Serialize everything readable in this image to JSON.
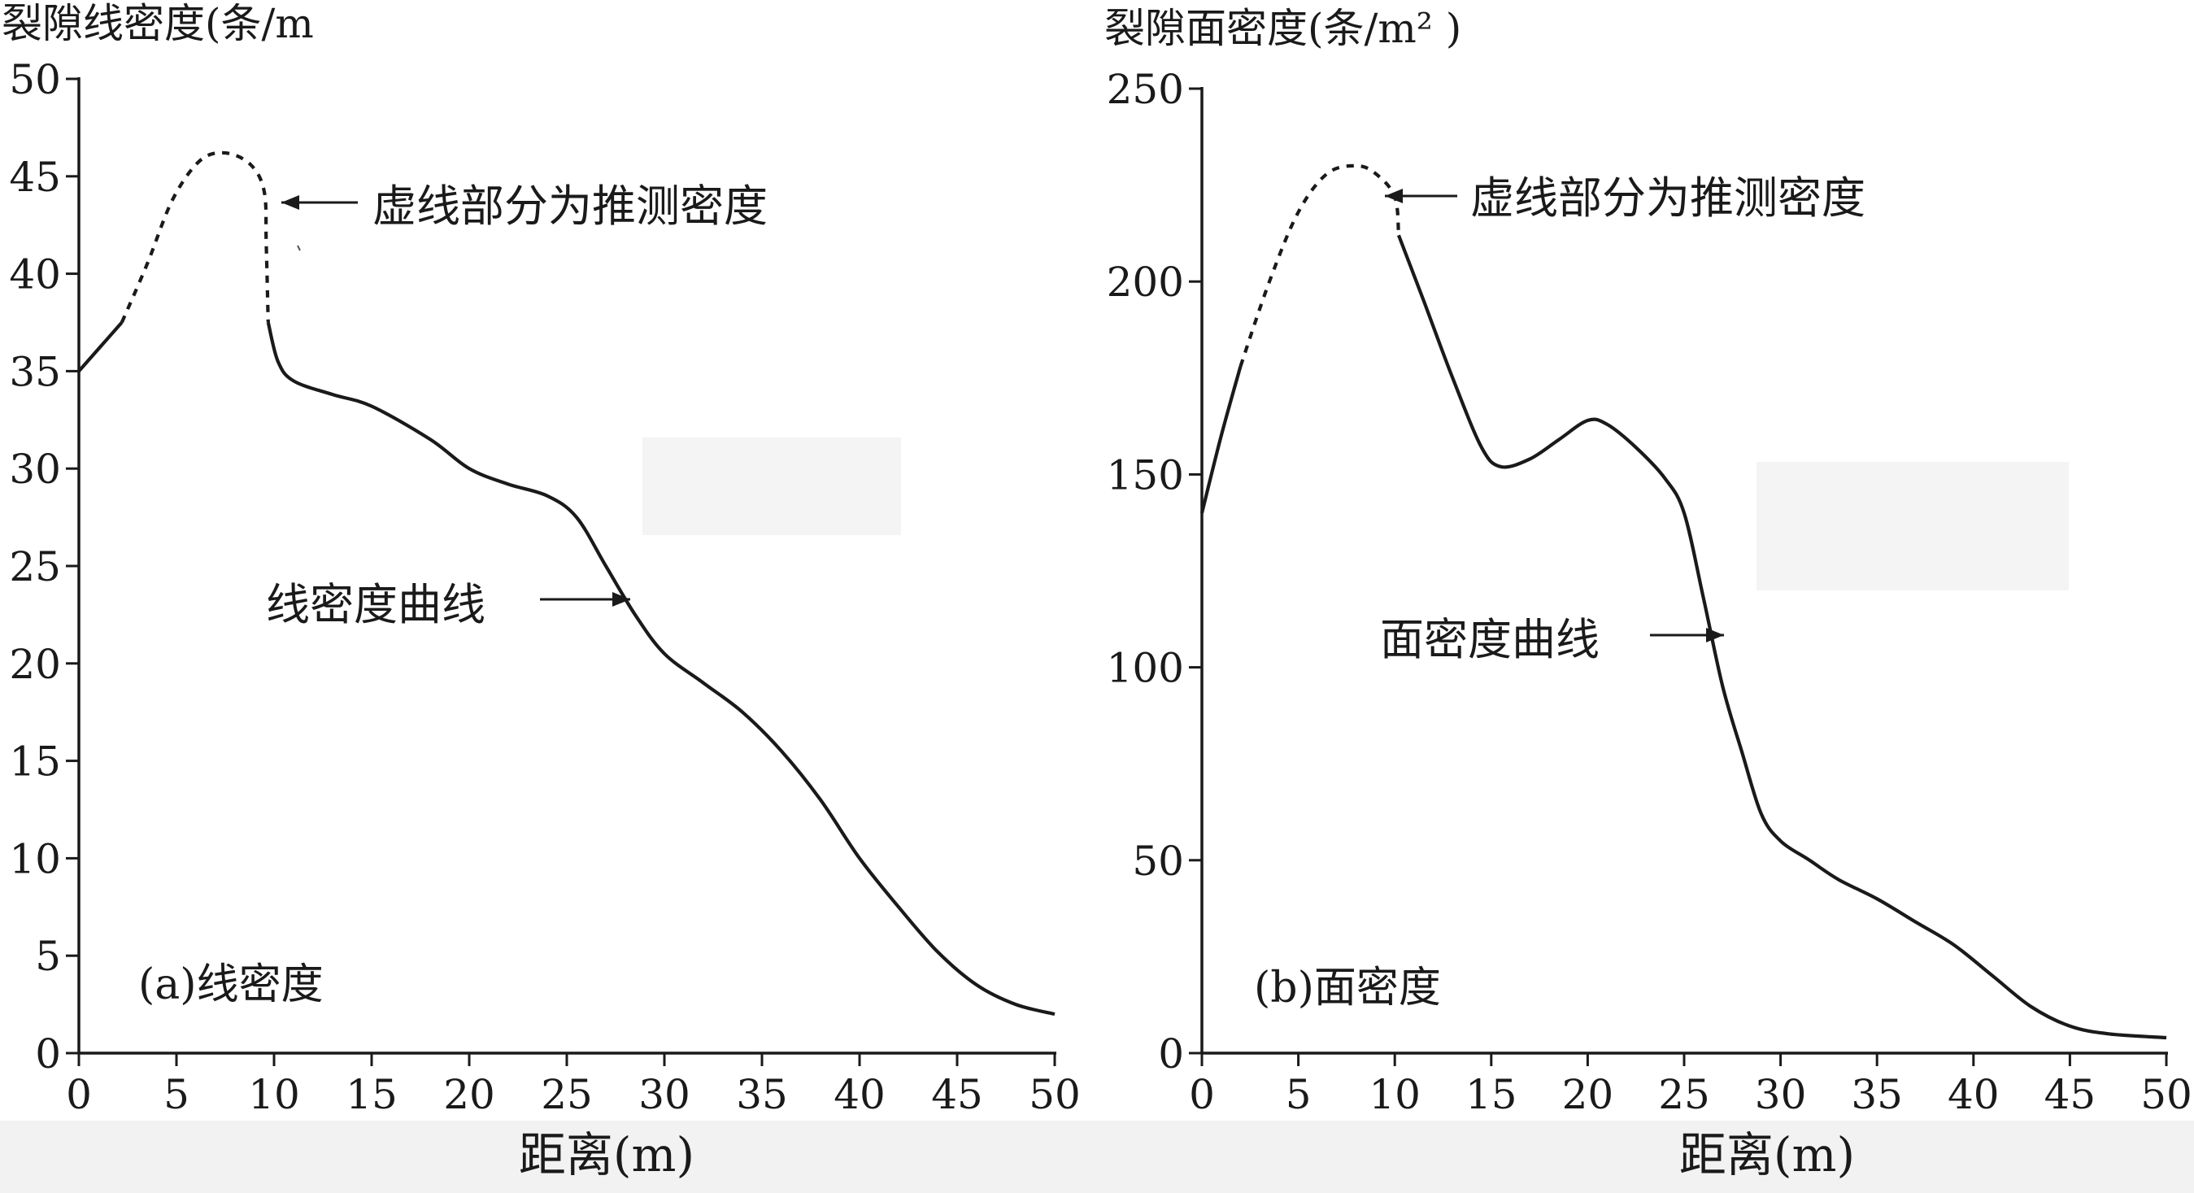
{
  "chart_data": [
    {
      "type": "line",
      "panel_label": "(a)线密度",
      "ylabel": "裂隙线密度(条/m",
      "xlabel": "距离(m)",
      "xlim": [
        0,
        50
      ],
      "ylim": [
        0,
        50
      ],
      "xticks": [
        "0",
        "5",
        "10",
        "15",
        "20",
        "25",
        "30",
        "35",
        "40",
        "45",
        "50"
      ],
      "yticks": [
        "0",
        "5",
        "10",
        "15",
        "20",
        "25",
        "30",
        "35",
        "40",
        "45",
        "50"
      ],
      "grid": false,
      "series": [
        {
          "style": "solid",
          "points": [
            [
              0,
              35
            ],
            [
              2.2,
              37.5
            ]
          ]
        },
        {
          "style": "dashed",
          "points": [
            [
              2.2,
              37.5
            ],
            [
              3.5,
              40.5
            ],
            [
              4.8,
              43.8
            ],
            [
              6.2,
              45.8
            ],
            [
              7.5,
              46.2
            ],
            [
              8.8,
              45.6
            ],
            [
              9.5,
              44.2
            ],
            [
              9.6,
              41.5
            ],
            [
              9.7,
              37.5
            ]
          ]
        },
        {
          "style": "solid",
          "points": [
            [
              9.7,
              37.5
            ],
            [
              10.2,
              35.5
            ],
            [
              11,
              34.5
            ],
            [
              13,
              33.8
            ],
            [
              15,
              33.2
            ],
            [
              18,
              31.5
            ],
            [
              20,
              30
            ],
            [
              22,
              29.2
            ],
            [
              24,
              28.6
            ],
            [
              25.5,
              27.5
            ],
            [
              27,
              25
            ],
            [
              28.5,
              22.5
            ],
            [
              30,
              20.5
            ],
            [
              32,
              19
            ],
            [
              34,
              17.5
            ],
            [
              36,
              15.5
            ],
            [
              38,
              13
            ],
            [
              40,
              10
            ],
            [
              42,
              7.5
            ],
            [
              44,
              5.2
            ],
            [
              46,
              3.5
            ],
            [
              48,
              2.5
            ],
            [
              50,
              2
            ]
          ]
        }
      ],
      "annotations": [
        {
          "text": "虚线部分为推测密度",
          "x": 9.8,
          "y": 43.5
        },
        {
          "text": "线密度曲线",
          "x": 28.3,
          "y": 23.2
        }
      ]
    },
    {
      "type": "line",
      "panel_label": "(b)面密度",
      "ylabel": "裂隙面密度(条/m² )",
      "xlabel": "距离(m)",
      "xlim": [
        0,
        50
      ],
      "ylim": [
        0,
        250
      ],
      "xticks": [
        "0",
        "5",
        "10",
        "15",
        "20",
        "25",
        "30",
        "35",
        "40",
        "45",
        "50"
      ],
      "yticks": [
        "0",
        "50",
        "100",
        "150",
        "200",
        "250"
      ],
      "grid": false,
      "series": [
        {
          "style": "solid",
          "points": [
            [
              0,
              140
            ],
            [
              1,
              160
            ],
            [
              2,
              178
            ]
          ]
        },
        {
          "style": "dashed",
          "points": [
            [
              2,
              178
            ],
            [
              3.5,
              200
            ],
            [
              5,
              218
            ],
            [
              6.5,
              228
            ],
            [
              8,
              230
            ],
            [
              9,
              228
            ],
            [
              10,
              222
            ],
            [
              10.2,
              212
            ]
          ]
        },
        {
          "style": "solid",
          "points": [
            [
              10.2,
              212
            ],
            [
              11.5,
              195
            ],
            [
              13,
              175
            ],
            [
              14.5,
              157
            ],
            [
              15.5,
              152
            ],
            [
              17,
              154
            ],
            [
              18.5,
              159
            ],
            [
              20,
              164
            ],
            [
              21,
              163
            ],
            [
              22.5,
              157
            ],
            [
              24,
              149
            ],
            [
              25,
              140
            ],
            [
              26,
              118
            ],
            [
              27,
              95
            ],
            [
              28,
              78
            ],
            [
              29,
              62
            ],
            [
              30,
              55
            ],
            [
              31.5,
              50
            ],
            [
              33,
              45
            ],
            [
              35,
              40
            ],
            [
              37,
              34
            ],
            [
              39,
              28
            ],
            [
              41,
              20
            ],
            [
              43,
              12
            ],
            [
              45,
              7
            ],
            [
              47,
              5
            ],
            [
              50,
              4
            ]
          ]
        }
      ],
      "annotations": [
        {
          "text": "虚线部分为推测密度",
          "x": 10,
          "y": 224
        },
        {
          "text": "面密度曲线",
          "x": 27,
          "y": 108
        }
      ]
    }
  ]
}
